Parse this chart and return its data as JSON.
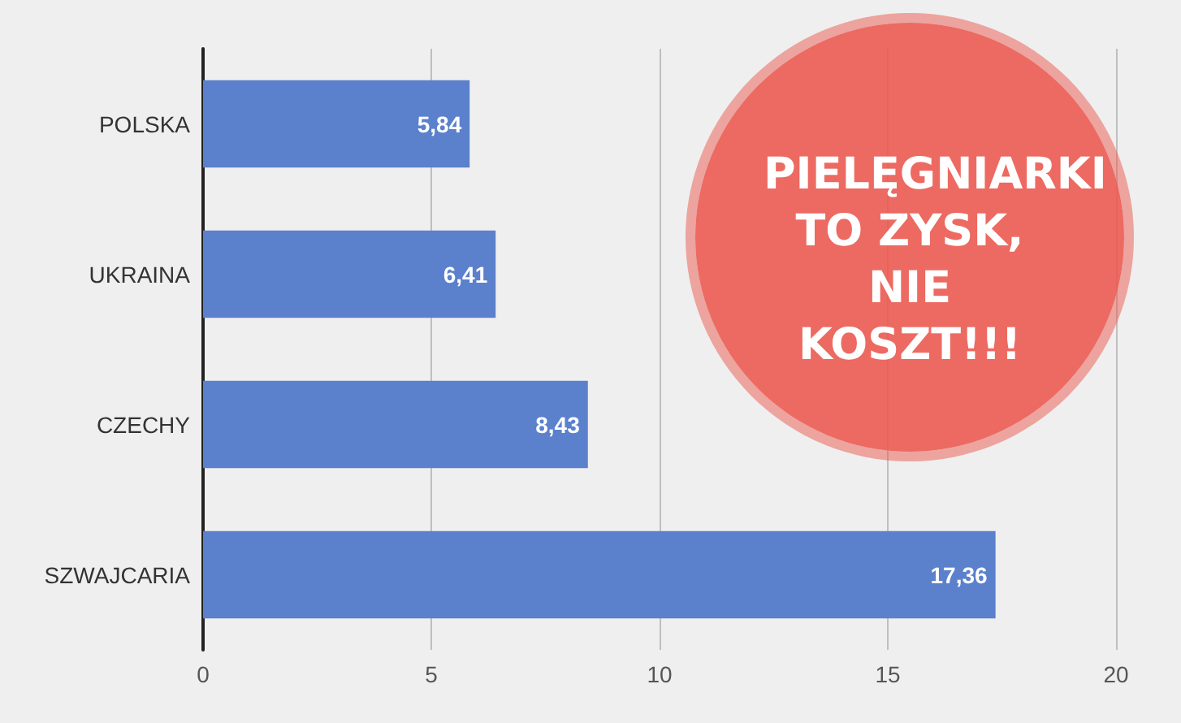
{
  "chart_data": {
    "type": "bar",
    "orientation": "horizontal",
    "categories": [
      "POLSKA",
      "UKRAINA",
      "CZECHY",
      "SZWAJCARIA"
    ],
    "values": [
      5.84,
      6.41,
      8.43,
      17.36
    ],
    "value_labels": [
      "5,84",
      "6,41",
      "8,43",
      "17,36"
    ],
    "color": "#5b80cc",
    "xlim": [
      0,
      20
    ],
    "xticks": [
      0,
      5,
      10,
      15,
      20
    ],
    "grid": "x",
    "annotations": [
      "PIELĘGNIARKI TO ZYSK, NIE KOSZT!!!"
    ]
  }
}
